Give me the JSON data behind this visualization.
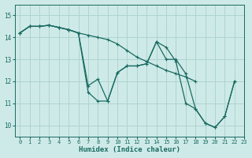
{
  "xlabel": "Humidex (Indice chaleur)",
  "background_color": "#ceeae8",
  "grid_color": "#aed4d0",
  "line_color": "#1a6b62",
  "xlim": [
    -0.5,
    23
  ],
  "ylim": [
    9.5,
    15.5
  ],
  "yticks": [
    10,
    11,
    12,
    13,
    14,
    15
  ],
  "xticks": [
    0,
    1,
    2,
    3,
    4,
    5,
    6,
    7,
    8,
    9,
    10,
    11,
    12,
    13,
    14,
    15,
    16,
    17,
    18,
    19,
    20,
    21,
    22,
    23
  ],
  "series": [
    [
      14.2,
      14.5,
      14.5,
      14.55,
      14.45,
      14.35,
      14.2,
      14.1,
      14.0,
      13.9,
      13.7,
      13.4,
      13.1,
      12.9,
      12.7,
      12.5,
      12.35,
      12.2,
      12.0,
      null,
      null,
      null,
      null,
      null
    ],
    [
      14.2,
      14.5,
      14.5,
      14.55,
      14.45,
      14.35,
      14.2,
      11.5,
      11.1,
      11.1,
      12.4,
      12.7,
      12.7,
      12.8,
      13.8,
      13.0,
      13.0,
      12.35,
      10.75,
      10.1,
      9.9,
      10.4,
      12.0,
      null
    ],
    [
      14.2,
      14.5,
      14.5,
      14.55,
      14.45,
      14.35,
      14.2,
      11.8,
      12.1,
      11.1,
      12.4,
      12.7,
      12.7,
      12.8,
      13.8,
      13.55,
      12.9,
      11.0,
      10.75,
      10.1,
      9.9,
      10.4,
      12.0,
      null
    ]
  ]
}
